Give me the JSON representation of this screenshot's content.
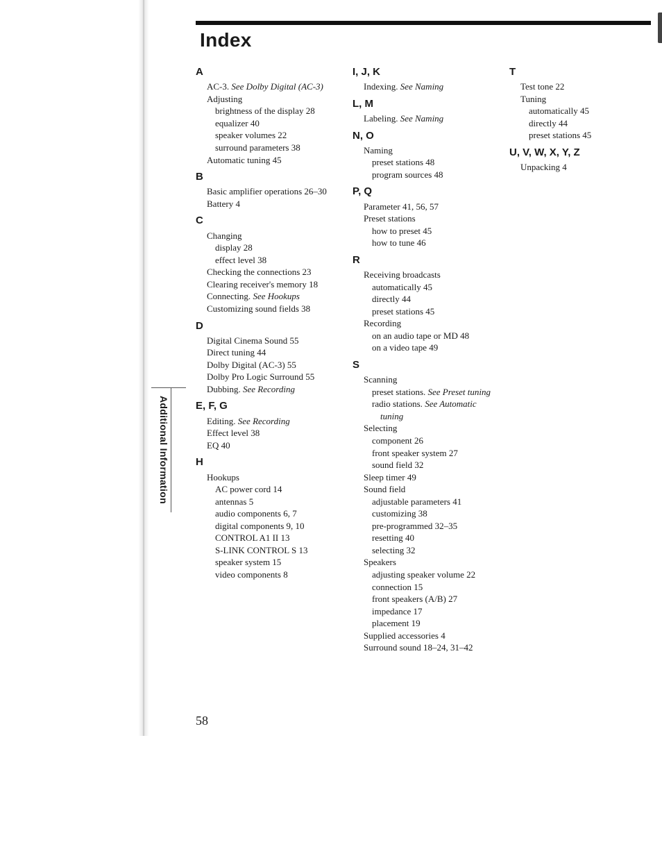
{
  "title": "Index",
  "side_tab": "Additional Information",
  "page_number": "58",
  "columns": [
    [
      {
        "letter": "A",
        "entries": [
          {
            "t": "AC-3.  ",
            "see": "See Dolby Digital (AC-3)"
          },
          {
            "t": "Adjusting"
          },
          {
            "t": "brightness of the display   28",
            "lvl": 1
          },
          {
            "t": "equalizer   40",
            "lvl": 1
          },
          {
            "t": "speaker volumes   22",
            "lvl": 1
          },
          {
            "t": "surround parameters   38",
            "lvl": 1
          },
          {
            "t": "Automatic tuning   45"
          }
        ]
      },
      {
        "letter": "B",
        "entries": [
          {
            "t": "Basic amplifier operations   26–30"
          },
          {
            "t": "Battery   4"
          }
        ]
      },
      {
        "letter": "C",
        "entries": [
          {
            "t": "Changing"
          },
          {
            "t": "display   28",
            "lvl": 1
          },
          {
            "t": "effect level   38",
            "lvl": 1
          },
          {
            "t": "Checking the connections   23"
          },
          {
            "t": "Clearing receiver's memory   18"
          },
          {
            "t": "Connecting.  ",
            "see": "See Hookups"
          },
          {
            "t": "Customizing sound fields   38"
          }
        ]
      },
      {
        "letter": "D",
        "entries": [
          {
            "t": "Digital Cinema Sound   55"
          },
          {
            "t": "Direct tuning   44"
          },
          {
            "t": "Dolby Digital (AC-3)   55"
          },
          {
            "t": "Dolby Pro Logic Surround   55"
          },
          {
            "t": "Dubbing.  ",
            "see": "See Recording"
          }
        ]
      },
      {
        "letter": "E, F, G",
        "entries": [
          {
            "t": "Editing.  ",
            "see": "See Recording"
          },
          {
            "t": "Effect level   38"
          },
          {
            "t": "EQ   40"
          }
        ]
      },
      {
        "letter": "H",
        "entries": [
          {
            "t": "Hookups"
          },
          {
            "t": "AC power cord   14",
            "lvl": 1
          },
          {
            "t": "antennas   5",
            "lvl": 1
          },
          {
            "t": "audio components   6, 7",
            "lvl": 1
          },
          {
            "t": "digital components   9, 10",
            "lvl": 1
          },
          {
            "t": "CONTROL A1 II   13",
            "lvl": 1
          },
          {
            "t": "S-LINK CONTROL S   13",
            "lvl": 1
          },
          {
            "t": "speaker system   15",
            "lvl": 1
          },
          {
            "t": "video components   8",
            "lvl": 1
          }
        ]
      }
    ],
    [
      {
        "letter": "I, J, K",
        "entries": [
          {
            "t": "Indexing.  ",
            "see": "See Naming"
          }
        ]
      },
      {
        "letter": "L, M",
        "entries": [
          {
            "t": "Labeling.  ",
            "see": "See Naming"
          }
        ]
      },
      {
        "letter": "N, O",
        "entries": [
          {
            "t": "Naming"
          },
          {
            "t": "preset stations   48",
            "lvl": 1
          },
          {
            "t": "program sources   48",
            "lvl": 1
          }
        ]
      },
      {
        "letter": "P, Q",
        "entries": [
          {
            "t": "Parameter   41, 56, 57"
          },
          {
            "t": "Preset stations"
          },
          {
            "t": "how to preset   45",
            "lvl": 1
          },
          {
            "t": "how to tune   46",
            "lvl": 1
          }
        ]
      },
      {
        "letter": "R",
        "entries": [
          {
            "t": "Receiving broadcasts"
          },
          {
            "t": "automatically   45",
            "lvl": 1
          },
          {
            "t": "directly   44",
            "lvl": 1
          },
          {
            "t": "preset stations   45",
            "lvl": 1
          },
          {
            "t": "Recording"
          },
          {
            "t": "on an audio tape or MD   48",
            "lvl": 1
          },
          {
            "t": "on a video tape   49",
            "lvl": 1
          }
        ]
      },
      {
        "letter": "S",
        "entries": [
          {
            "t": "Scanning"
          },
          {
            "t": "preset stations.  ",
            "lvl": 1,
            "see": "See Preset tuning"
          },
          {
            "t": "radio stations.  ",
            "lvl": 1,
            "see": "See Automatic tuning"
          },
          {
            "t": "Selecting"
          },
          {
            "t": "component   26",
            "lvl": 1
          },
          {
            "t": "front speaker system   27",
            "lvl": 1
          },
          {
            "t": "sound field   32",
            "lvl": 1
          },
          {
            "t": "Sleep timer   49"
          },
          {
            "t": "Sound field"
          },
          {
            "t": "adjustable parameters   41",
            "lvl": 1
          },
          {
            "t": "customizing   38",
            "lvl": 1
          },
          {
            "t": "pre-programmed   32–35",
            "lvl": 1
          },
          {
            "t": "resetting   40",
            "lvl": 1
          },
          {
            "t": "selecting   32",
            "lvl": 1
          },
          {
            "t": "Speakers"
          },
          {
            "t": "adjusting speaker volume   22",
            "lvl": 1
          },
          {
            "t": "connection   15",
            "lvl": 1
          },
          {
            "t": "front speakers (A/B)   27",
            "lvl": 1
          },
          {
            "t": "impedance   17",
            "lvl": 1
          },
          {
            "t": "placement   19",
            "lvl": 1
          },
          {
            "t": "Supplied accessories   4"
          },
          {
            "t": "Surround sound   18–24, 31–42"
          }
        ]
      }
    ],
    [
      {
        "letter": "T",
        "entries": [
          {
            "t": "Test tone   22"
          },
          {
            "t": "Tuning"
          },
          {
            "t": "automatically   45",
            "lvl": 1
          },
          {
            "t": "directly   44",
            "lvl": 1
          },
          {
            "t": "preset stations   45",
            "lvl": 1
          }
        ]
      },
      {
        "letter": "U, V, W, X, Y, Z",
        "entries": [
          {
            "t": "Unpacking   4"
          }
        ]
      }
    ]
  ]
}
